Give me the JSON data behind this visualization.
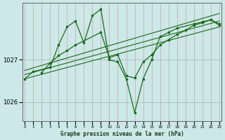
{
  "xlabel": "Graphe pression niveau de la mer (hPa)",
  "bg_color": "#cce8e8",
  "line_color": "#1a6b1a",
  "marker_color": "#1a6b1a",
  "x_ticks": [
    0,
    1,
    2,
    3,
    4,
    5,
    6,
    7,
    8,
    9,
    10,
    11,
    12,
    13,
    14,
    15,
    16,
    17,
    18,
    19,
    20,
    21,
    22,
    23
  ],
  "y_ticks": [
    1026,
    1027
  ],
  "ylim": [
    1025.55,
    1028.35
  ],
  "xlim": [
    -0.3,
    23.3
  ],
  "series1_x": [
    0,
    1,
    3,
    4,
    5,
    6,
    7,
    8,
    9,
    10,
    11,
    12,
    13,
    14,
    15,
    16,
    17,
    18,
    20,
    21,
    22,
    23
  ],
  "series1_y": [
    1026.55,
    1026.72,
    1026.82,
    1027.35,
    1027.78,
    1027.92,
    1027.4,
    1028.05,
    1028.2,
    1027.0,
    1026.95,
    1026.55,
    1025.75,
    1026.55,
    1027.0,
    1027.55,
    1027.65,
    1027.75,
    1027.85,
    1027.9,
    1027.95,
    1027.85
  ],
  "series2_x": [
    2,
    3,
    4,
    5,
    6,
    9,
    10,
    11,
    12,
    13,
    14,
    15,
    16,
    17,
    18,
    19,
    20,
    21,
    22,
    23
  ],
  "series2_y": [
    1026.7,
    1026.92,
    1027.1,
    1027.22,
    1027.35,
    1027.65,
    1027.05,
    1027.12,
    1026.62,
    1026.57,
    1026.95,
    1027.12,
    1027.35,
    1027.48,
    1027.6,
    1027.7,
    1027.82,
    1027.88,
    1027.95,
    1027.82
  ],
  "trend_x": [
    0,
    23
  ],
  "trend1_y": [
    1026.75,
    1028.1
  ],
  "trend2_y": [
    1026.65,
    1027.92
  ],
  "trend3_y": [
    1026.55,
    1027.78
  ]
}
